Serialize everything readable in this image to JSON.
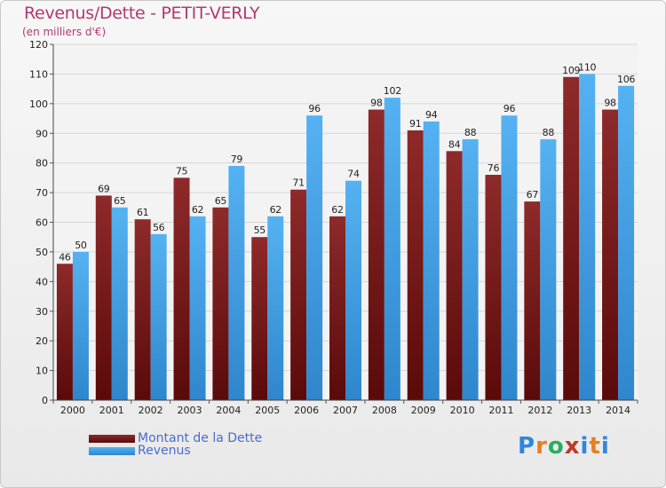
{
  "header": {
    "title": "Revenus/Dette - PETIT-VERLY",
    "subtitle": "(en milliers d'€)"
  },
  "logo": {
    "text": "Proxiti",
    "letters": [
      "P",
      "r",
      "o",
      "x",
      "i",
      "t",
      "i"
    ],
    "letter_colors": [
      "#2e86de",
      "#e67e22",
      "#27ae60",
      "#c0392b",
      "#2e86de",
      "#e67e22",
      "#2e86de"
    ]
  },
  "chart_data": {
    "type": "bar",
    "title": "Revenus/Dette - PETIT-VERLY",
    "subtitle": "(en milliers d'€)",
    "xlabel": "",
    "ylabel": "",
    "ylim": [
      0,
      120
    ],
    "yticks": [
      0,
      10,
      20,
      30,
      40,
      50,
      60,
      70,
      80,
      90,
      100,
      110,
      120
    ],
    "grid": true,
    "legend_position": "bottom-left",
    "categories": [
      "2000",
      "2001",
      "2002",
      "2003",
      "2004",
      "2005",
      "2006",
      "2007",
      "2008",
      "2009",
      "2010",
      "2011",
      "2012",
      "2013",
      "2014"
    ],
    "series": [
      {
        "name": "Montant de la Dette",
        "color": "#7a1f1f",
        "values": [
          46,
          69,
          61,
          75,
          65,
          55,
          71,
          62,
          98,
          91,
          84,
          76,
          67,
          109,
          98
        ]
      },
      {
        "name": "Revenus",
        "color": "#3f9fe6",
        "values": [
          50,
          65,
          56,
          62,
          79,
          62,
          96,
          74,
          102,
          94,
          88,
          96,
          88,
          110,
          106
        ]
      }
    ]
  }
}
